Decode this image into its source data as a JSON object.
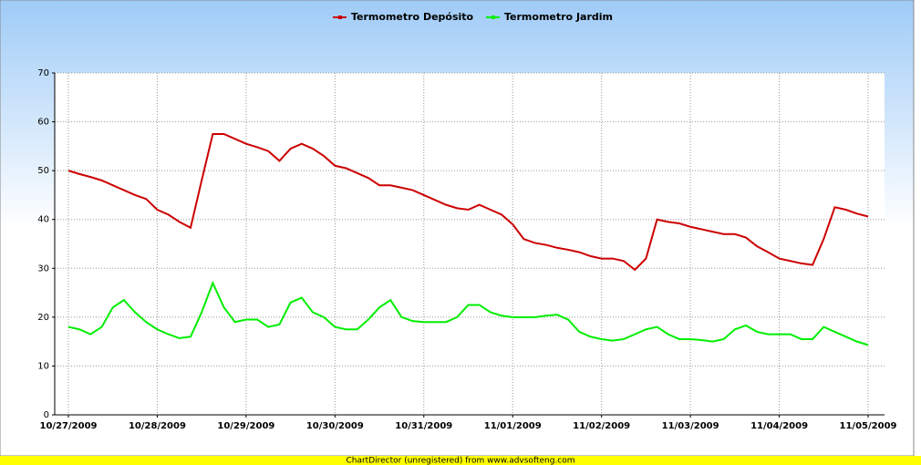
{
  "chart_data": {
    "type": "line",
    "categories": [
      "10/27/2009",
      null,
      null,
      null,
      null,
      null,
      null,
      null,
      "10/28/2009",
      null,
      null,
      null,
      null,
      null,
      null,
      null,
      "10/29/2009",
      null,
      null,
      null,
      null,
      null,
      null,
      null,
      "10/30/2009",
      null,
      null,
      null,
      null,
      null,
      null,
      null,
      "10/31/2009",
      null,
      null,
      null,
      null,
      null,
      null,
      null,
      "11/01/2009",
      null,
      null,
      null,
      null,
      null,
      null,
      null,
      "11/02/2009",
      null,
      null,
      null,
      null,
      null,
      null,
      null,
      "11/03/2009",
      null,
      null,
      null,
      null,
      null,
      null,
      null,
      "11/04/2009",
      null,
      null,
      null,
      null,
      null,
      null,
      null,
      "11/05/2009"
    ],
    "series": [
      {
        "name": "Termometro Depósito",
        "color": "#cc0000",
        "values": [
          50,
          49.3,
          48.7,
          48,
          47,
          46,
          45,
          44.2,
          42,
          41,
          39.5,
          38.3,
          48,
          57.5,
          57.5,
          56.5,
          55.5,
          54.8,
          54,
          52,
          54.5,
          55.5,
          54.5,
          53,
          51,
          50.5,
          49.5,
          48.5,
          47,
          47,
          46.5,
          46,
          45,
          44,
          43,
          42.3,
          42,
          43,
          42,
          41,
          39,
          36,
          35.2,
          34.8,
          34.2,
          33.8,
          33.3,
          32.5,
          32,
          32,
          31.5,
          29.7,
          32,
          40,
          39.5,
          39.2,
          38.5,
          38,
          37.5,
          37,
          37,
          36.3,
          34.5,
          33.3,
          32,
          31.5,
          31,
          30.7,
          36,
          42.5,
          42,
          41.2,
          40.6
        ]
      },
      {
        "name": "Termometro Jardim",
        "color": "#00ee00",
        "values": [
          18,
          17.5,
          16.5,
          18,
          22,
          23.5,
          21,
          19,
          17.5,
          16.5,
          15.7,
          16,
          21,
          27,
          22,
          19,
          19.5,
          19.5,
          18,
          18.5,
          23,
          24,
          21,
          20,
          18,
          17.5,
          17.5,
          19.5,
          22,
          23.5,
          20,
          19.2,
          19,
          19,
          19,
          20,
          22.5,
          22.5,
          21,
          20.3,
          20,
          20,
          20,
          20.3,
          20.5,
          19.5,
          17,
          16,
          15.5,
          15.2,
          15.5,
          16.5,
          17.5,
          18,
          16.5,
          15.5,
          15.5,
          15.3,
          15,
          15.5,
          17.5,
          18.3,
          17,
          16.5,
          16.5,
          16.5,
          15.5,
          15.5,
          18,
          17,
          16,
          15,
          14.3
        ]
      }
    ],
    "ylim": [
      0,
      70
    ],
    "yticks": [
      0,
      10,
      20,
      30,
      40,
      50,
      60,
      70
    ],
    "grid": true,
    "legend": "top",
    "footer": "ChartDirector (unregistered) from www.advsofteng.com"
  }
}
